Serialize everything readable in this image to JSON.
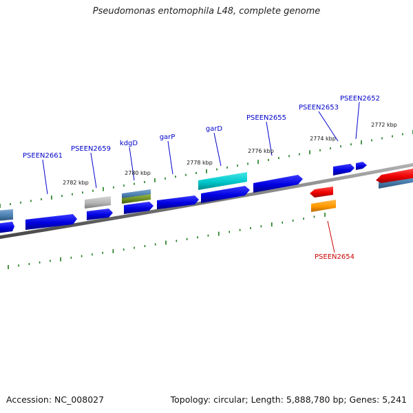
{
  "title": "Pseudomonas entomophila L48, complete genome",
  "footer": {
    "accession": "Accession: NC_008027",
    "summary": "Topology: circular; Length: 5,888,780 bp; Genes: 5,241"
  },
  "map": {
    "kbp_ticks": [
      "2782 kbp",
      "2780 kbp",
      "2778 kbp",
      "2776 kbp",
      "2774 kbp",
      "2772 kbp"
    ],
    "gene_labels": [
      {
        "text": "PSEEN2661",
        "color": "#0000cc"
      },
      {
        "text": "PSEEN2659",
        "color": "#0000cc"
      },
      {
        "text": "kdgD",
        "color": "#0000cc"
      },
      {
        "text": "garP",
        "color": "#0000cc"
      },
      {
        "text": "garD",
        "color": "#0000cc"
      },
      {
        "text": "PSEEN2655",
        "color": "#0000cc"
      },
      {
        "text": "PSEEN2653",
        "color": "#0000cc"
      },
      {
        "text": "PSEEN2652",
        "color": "#0000cc"
      },
      {
        "text": "PSEEN2654",
        "color": "#cc0000"
      }
    ],
    "colors": {
      "backbone": "#7a7a7a",
      "ticks": "#1a7a1a",
      "forward_gene": "#0000dd",
      "reverse_gene": "#ee0000",
      "highlight_cyan": "#00c8cc",
      "orange": "#ff9900",
      "grey_gene": "#b4b4b4",
      "steelblue": "#4a7fb0",
      "olive": "#6b8e23"
    }
  }
}
